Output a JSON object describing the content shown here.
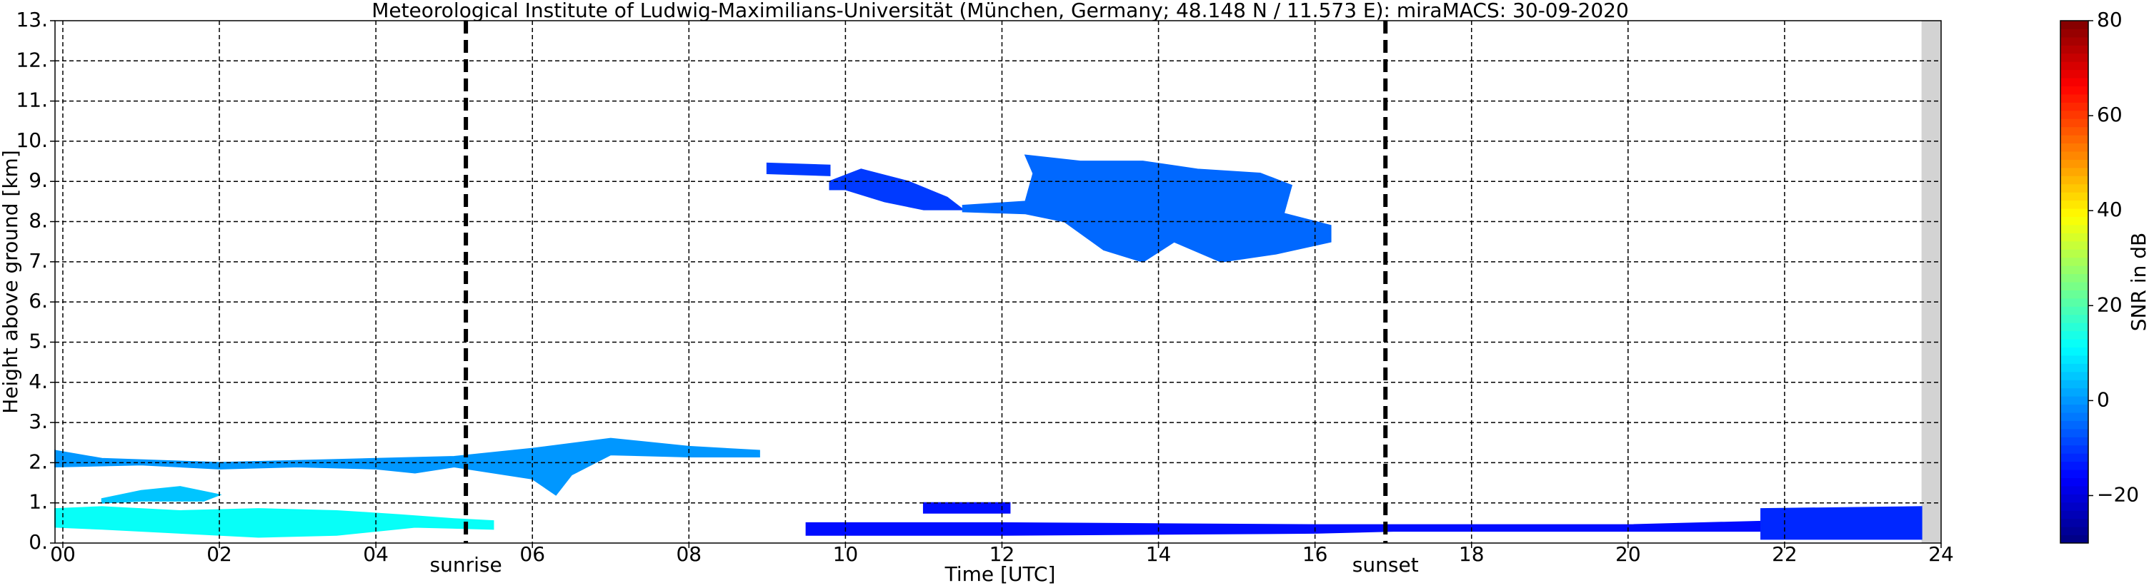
{
  "chart_data": {
    "type": "radar-time-height",
    "title": "Meteorological Institute of Ludwig-Maximilians-Universität (München, Germany; 48.148 N / 11.573 E):    miraMACS: 30-09-2020",
    "xlabel": "Time [UTC]",
    "ylabel": "Height above ground [km]",
    "xlim": [
      -0.1,
      24
    ],
    "ylim": [
      0,
      13
    ],
    "xticks": [
      {
        "value": 0,
        "label": "00"
      },
      {
        "value": 2,
        "label": "02"
      },
      {
        "value": 4,
        "label": "04"
      },
      {
        "value": 6,
        "label": "06"
      },
      {
        "value": 8,
        "label": "08"
      },
      {
        "value": 10,
        "label": "10"
      },
      {
        "value": 12,
        "label": "12"
      },
      {
        "value": 14,
        "label": "14"
      },
      {
        "value": 16,
        "label": "16"
      },
      {
        "value": 18,
        "label": "18"
      },
      {
        "value": 20,
        "label": "20"
      },
      {
        "value": 22,
        "label": "22"
      },
      {
        "value": 24,
        "label": "24"
      }
    ],
    "yticks": [
      {
        "value": 0,
        "label": "0."
      },
      {
        "value": 1,
        "label": "1."
      },
      {
        "value": 2,
        "label": "2."
      },
      {
        "value": 3,
        "label": "3."
      },
      {
        "value": 4,
        "label": "4."
      },
      {
        "value": 5,
        "label": "5."
      },
      {
        "value": 6,
        "label": "6."
      },
      {
        "value": 7,
        "label": "7."
      },
      {
        "value": 8,
        "label": "8."
      },
      {
        "value": 9,
        "label": "9."
      },
      {
        "value": 10,
        "label": "10."
      },
      {
        "value": 11,
        "label": "11."
      },
      {
        "value": 12,
        "label": "12."
      },
      {
        "value": 13,
        "label": "13."
      }
    ],
    "grid": true,
    "missing_x": [
      23.75,
      24
    ],
    "events": [
      {
        "label": "sunrise",
        "x": 5.15
      },
      {
        "label": "sunset",
        "x": 16.9
      }
    ],
    "colorbar": {
      "label": "SNR in dB",
      "clim": [
        -30,
        80
      ],
      "ticks": [
        {
          "value": -20,
          "label": "−20"
        },
        0,
        20,
        40,
        60,
        80
      ]
    },
    "regions": [
      {
        "x": [
          -0.1,
          0.5,
          1.5,
          2.5,
          3.5,
          4.3,
          5,
          5.5,
          5.5,
          4.5,
          3.5,
          2.5,
          1.5,
          0.5,
          -0.1
        ],
        "y": [
          0.85,
          0.9,
          0.8,
          0.85,
          0.8,
          0.7,
          0.6,
          0.55,
          0.35,
          0.4,
          0.2,
          0.15,
          0.25,
          0.35,
          0.4
        ],
        "snr": 12
      },
      {
        "x": [
          0.5,
          1,
          1.5,
          2,
          1.8,
          1,
          0.5
        ],
        "y": [
          1.1,
          1.3,
          1.4,
          1.2,
          1.05,
          1.05,
          1.0
        ],
        "snr": 5
      },
      {
        "x": [
          -0.1,
          0.5,
          2,
          3,
          4,
          5,
          6,
          7,
          8,
          8.9,
          8.9,
          8,
          7,
          6.5,
          6.3,
          6,
          5,
          4.5,
          4,
          3,
          2,
          1,
          -0.1
        ],
        "y": [
          2.3,
          2.1,
          2.0,
          2.05,
          2.1,
          2.15,
          2.35,
          2.6,
          2.4,
          2.3,
          2.15,
          2.15,
          2.2,
          1.7,
          1.2,
          1.6,
          1.9,
          1.75,
          1.85,
          1.9,
          1.85,
          1.95,
          1.9
        ],
        "snr": 0
      },
      {
        "x": [
          9.8,
          10.2,
          10.8,
          11.3,
          11.5,
          11,
          10.5,
          10,
          9.8
        ],
        "y": [
          9.0,
          9.3,
          9.0,
          8.6,
          8.3,
          8.3,
          8.5,
          8.8,
          8.8
        ],
        "snr": -10
      },
      {
        "x": [
          9,
          9.8,
          9.8,
          9
        ],
        "y": [
          9.45,
          9.4,
          9.15,
          9.2
        ],
        "snr": -10
      },
      {
        "x": [
          12.3,
          13,
          13.8,
          14.5,
          15.3,
          15.7,
          15.6,
          16.2,
          16.2,
          15.5,
          14.8,
          14.2,
          13.8,
          13.3,
          12.8,
          12.3,
          11.5,
          11.5,
          12.3,
          12.4
        ],
        "y": [
          9.65,
          9.5,
          9.5,
          9.3,
          9.2,
          8.9,
          8.2,
          7.9,
          7.5,
          7.2,
          7.0,
          7.5,
          7.0,
          7.3,
          8.0,
          8.2,
          8.25,
          8.4,
          8.5,
          9.2
        ],
        "snr": -5
      },
      {
        "x": [
          9.5,
          12,
          16,
          17,
          20,
          22,
          22,
          20,
          17,
          16,
          12,
          9.5
        ],
        "y": [
          0.5,
          0.5,
          0.45,
          0.45,
          0.45,
          0.55,
          0.3,
          0.3,
          0.3,
          0.25,
          0.2,
          0.2
        ],
        "snr": -15
      },
      {
        "x": [
          21.7,
          23.75,
          23.75,
          21.7
        ],
        "y": [
          0.85,
          0.9,
          0.1,
          0.1
        ],
        "snr": -12
      },
      {
        "x": [
          11,
          12.1,
          12.1,
          11
        ],
        "y": [
          1.0,
          1.0,
          0.75,
          0.75
        ],
        "snr": -15
      }
    ]
  }
}
